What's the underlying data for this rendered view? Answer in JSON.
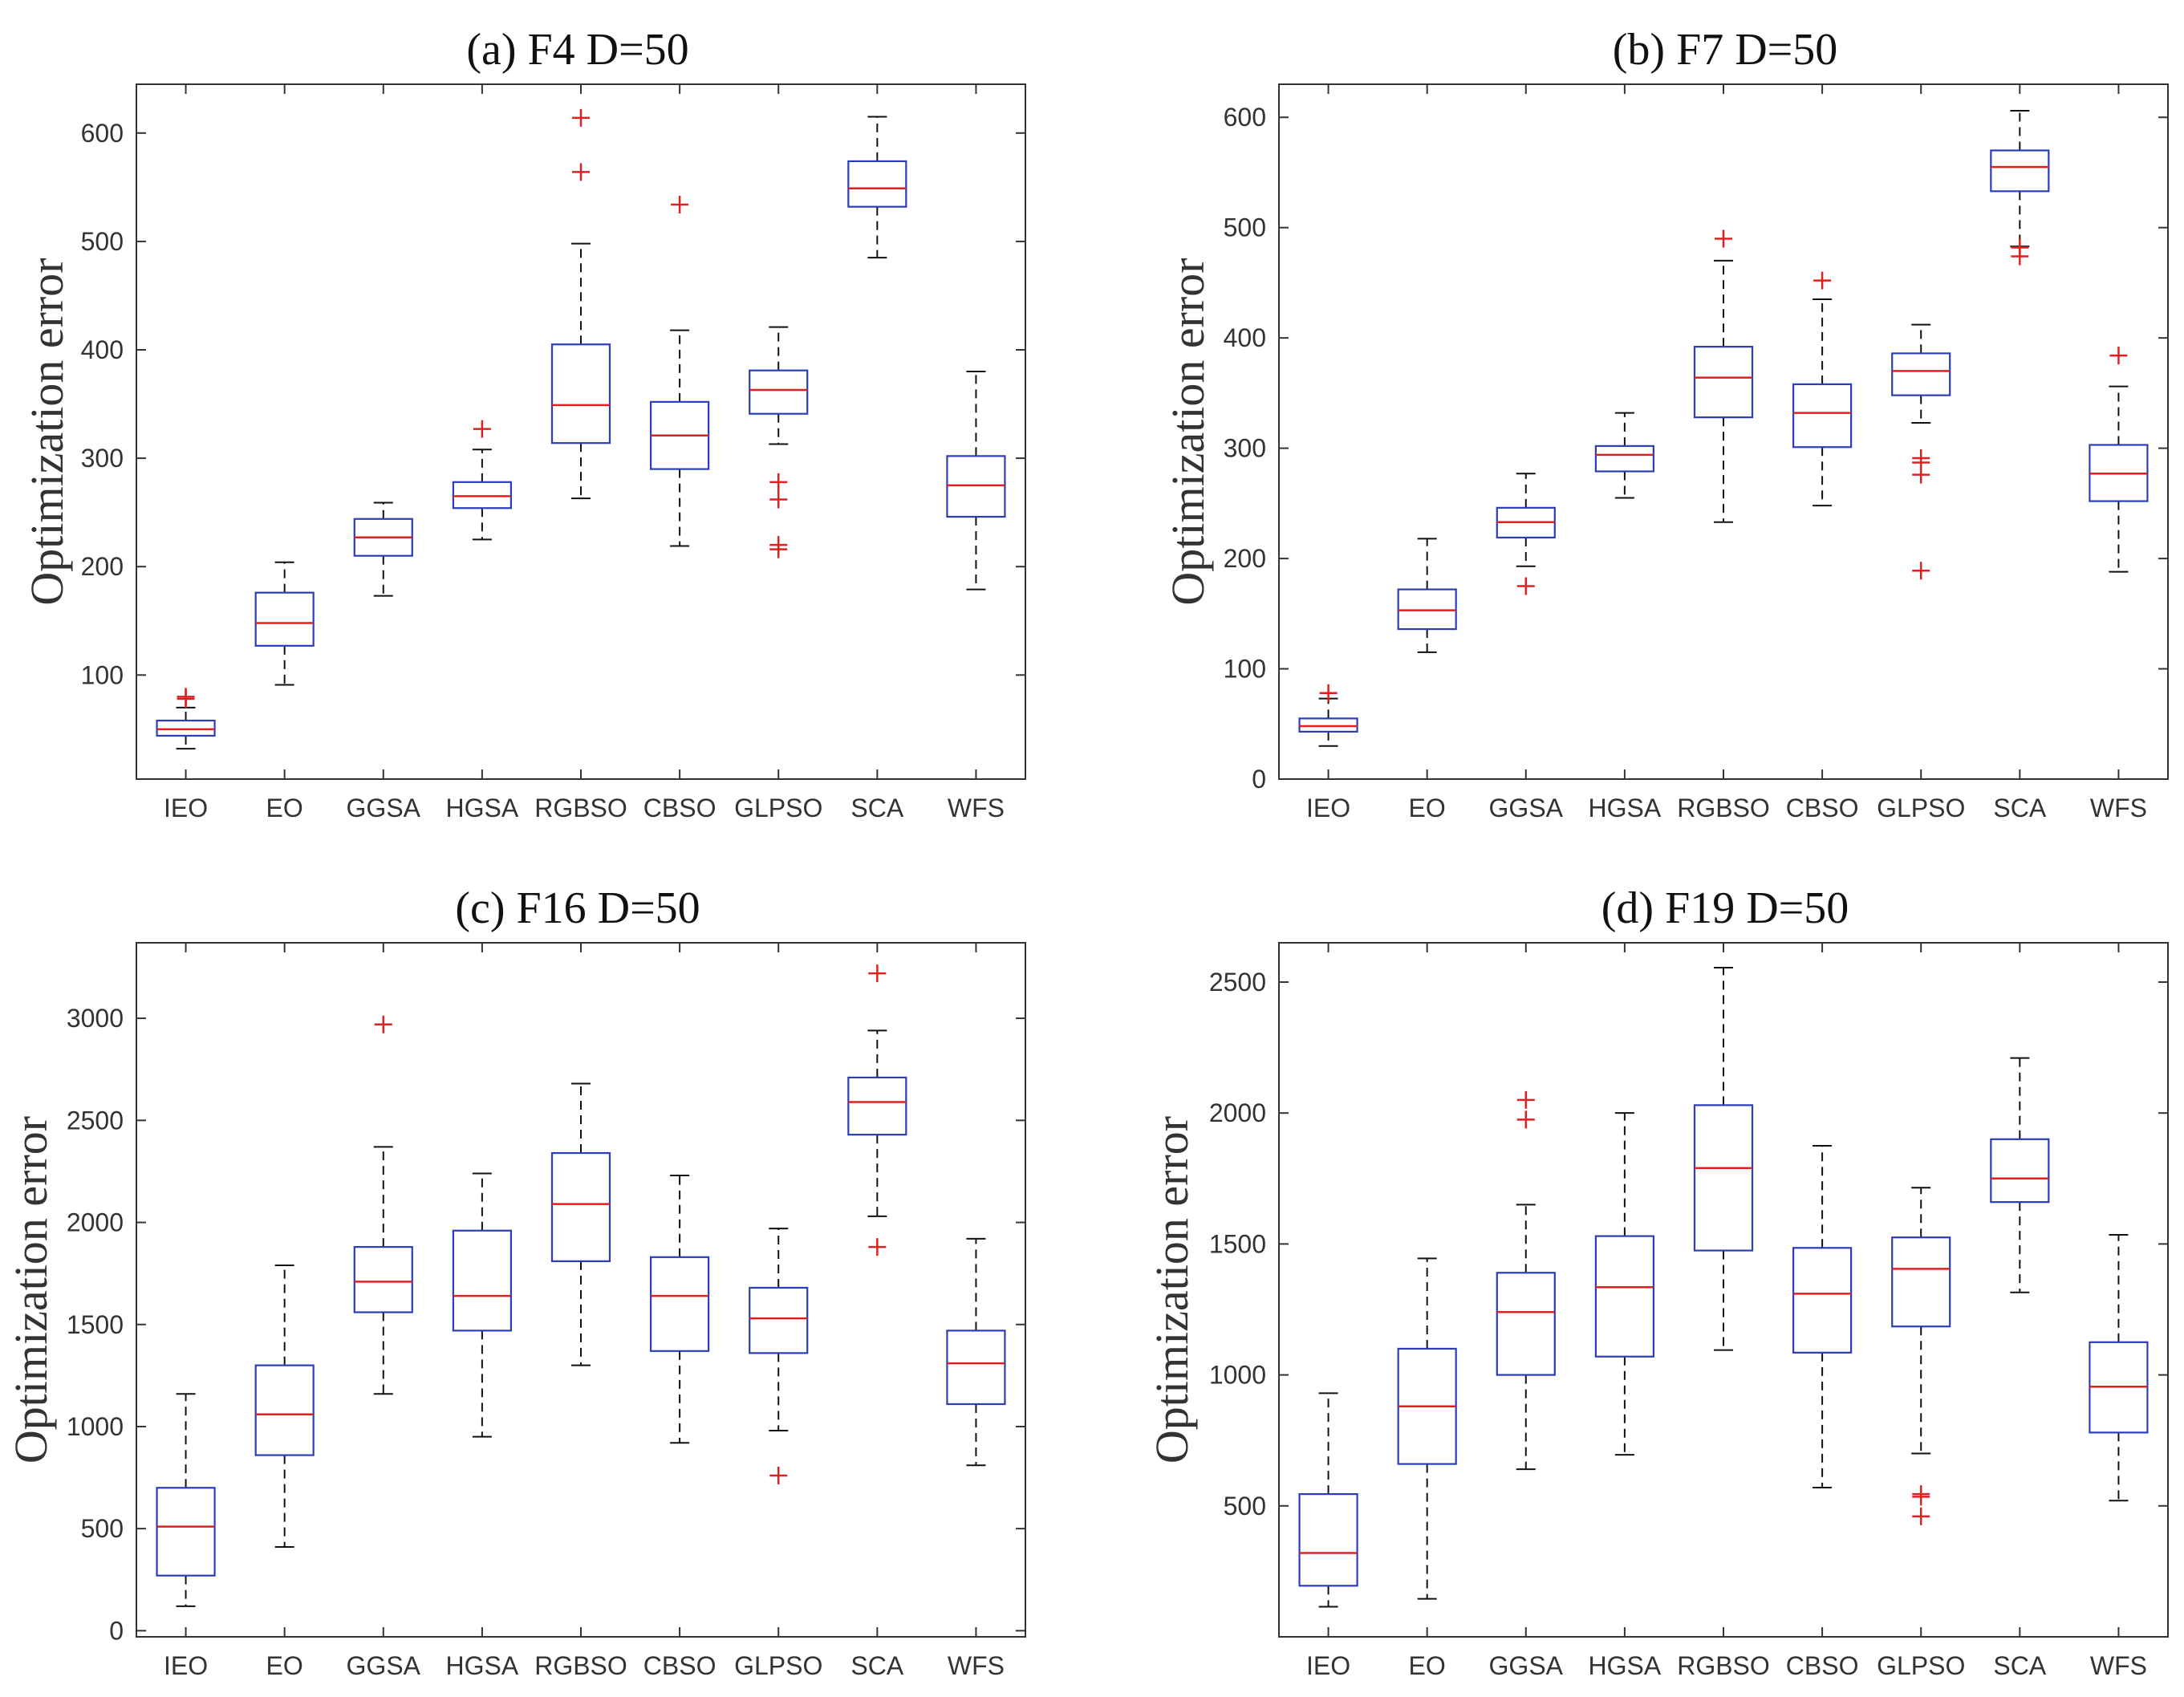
{
  "colors": {
    "box": "#2B3DB8",
    "median": "#E02020",
    "outlier": "#E02020",
    "whisker": "#111111",
    "axis": "#333333"
  },
  "chart_data": [
    {
      "type": "box",
      "title": "(a)  F4 D=50",
      "ylabel": "Optimization error",
      "xlabel": "",
      "ylim": [
        4,
        645
      ],
      "yticks": [
        100,
        200,
        300,
        400,
        500,
        600
      ],
      "categories": [
        "IEO",
        "EO",
        "GGSA",
        "HGSA",
        "RGBSO",
        "CBSO",
        "GLPSO",
        "SCA",
        "WFS"
      ],
      "boxes": [
        {
          "min": 32,
          "q1": 44,
          "median": 50,
          "q3": 58,
          "max": 70,
          "outliers": [
            78,
            80
          ]
        },
        {
          "min": 91,
          "q1": 127,
          "median": 148,
          "q3": 176,
          "max": 204,
          "outliers": []
        },
        {
          "min": 173,
          "q1": 210,
          "median": 227,
          "q3": 244,
          "max": 259,
          "outliers": []
        },
        {
          "min": 225,
          "q1": 254,
          "median": 265,
          "q3": 278,
          "max": 308,
          "outliers": [
            327
          ]
        },
        {
          "min": 263,
          "q1": 314,
          "median": 349,
          "q3": 405,
          "max": 498,
          "outliers": [
            564,
            614
          ]
        },
        {
          "min": 219,
          "q1": 290,
          "median": 321,
          "q3": 352,
          "max": 418,
          "outliers": [
            534
          ]
        },
        {
          "min": 313,
          "q1": 341,
          "median": 363,
          "q3": 381,
          "max": 421,
          "outliers": [
            278,
            262,
            220,
            216
          ]
        },
        {
          "min": 485,
          "q1": 532,
          "median": 549,
          "q3": 574,
          "max": 615,
          "outliers": []
        },
        {
          "min": 179,
          "q1": 246,
          "median": 275,
          "q3": 302,
          "max": 380,
          "outliers": []
        }
      ]
    },
    {
      "type": "box",
      "title": "(b)  F7 D=50",
      "ylabel": "Optimization error",
      "xlabel": "",
      "ylim": [
        0,
        630
      ],
      "yticks": [
        0,
        100,
        200,
        300,
        400,
        500,
        600
      ],
      "categories": [
        "IEO",
        "EO",
        "GGSA",
        "HGSA",
        "RGBSO",
        "CBSO",
        "GLPSO",
        "SCA",
        "WFS"
      ],
      "boxes": [
        {
          "min": 30,
          "q1": 43,
          "median": 48,
          "q3": 55,
          "max": 73,
          "outliers": [
            78
          ]
        },
        {
          "min": 115,
          "q1": 136,
          "median": 153,
          "q3": 172,
          "max": 218,
          "outliers": []
        },
        {
          "min": 193,
          "q1": 219,
          "median": 233,
          "q3": 246,
          "max": 277,
          "outliers": [
            175
          ]
        },
        {
          "min": 255,
          "q1": 279,
          "median": 294,
          "q3": 302,
          "max": 332,
          "outliers": []
        },
        {
          "min": 233,
          "q1": 328,
          "median": 364,
          "q3": 392,
          "max": 470,
          "outliers": [
            490
          ]
        },
        {
          "min": 248,
          "q1": 301,
          "median": 332,
          "q3": 358,
          "max": 435,
          "outliers": [
            452
          ]
        },
        {
          "min": 323,
          "q1": 348,
          "median": 370,
          "q3": 386,
          "max": 412,
          "outliers": [
            291,
            287,
            276,
            189
          ]
        },
        {
          "min": 483,
          "q1": 533,
          "median": 555,
          "q3": 570,
          "max": 606,
          "outliers": [
            482,
            474
          ]
        },
        {
          "min": 188,
          "q1": 252,
          "median": 277,
          "q3": 303,
          "max": 356,
          "outliers": [
            384
          ]
        }
      ]
    },
    {
      "type": "box",
      "title": "(c)  F16 D=50",
      "ylabel": "Optimization error",
      "xlabel": "",
      "ylim": [
        -30,
        3370
      ],
      "yticks": [
        0,
        500,
        1000,
        1500,
        2000,
        2500,
        3000
      ],
      "categories": [
        "IEO",
        "EO",
        "GGSA",
        "HGSA",
        "RGBSO",
        "CBSO",
        "GLPSO",
        "SCA",
        "WFS"
      ],
      "boxes": [
        {
          "min": 120,
          "q1": 270,
          "median": 510,
          "q3": 700,
          "max": 1160,
          "outliers": []
        },
        {
          "min": 410,
          "q1": 860,
          "median": 1060,
          "q3": 1300,
          "max": 1790,
          "outliers": []
        },
        {
          "min": 1160,
          "q1": 1560,
          "median": 1710,
          "q3": 1880,
          "max": 2370,
          "outliers": [
            2970
          ]
        },
        {
          "min": 950,
          "q1": 1470,
          "median": 1640,
          "q3": 1960,
          "max": 2240,
          "outliers": []
        },
        {
          "min": 1300,
          "q1": 1810,
          "median": 2090,
          "q3": 2340,
          "max": 2680,
          "outliers": []
        },
        {
          "min": 920,
          "q1": 1370,
          "median": 1640,
          "q3": 1830,
          "max": 2230,
          "outliers": []
        },
        {
          "min": 980,
          "q1": 1360,
          "median": 1530,
          "q3": 1680,
          "max": 1970,
          "outliers": [
            760
          ]
        },
        {
          "min": 2030,
          "q1": 2430,
          "median": 2590,
          "q3": 2710,
          "max": 2940,
          "outliers": [
            3220,
            1880
          ]
        },
        {
          "min": 810,
          "q1": 1110,
          "median": 1310,
          "q3": 1470,
          "max": 1920,
          "outliers": []
        }
      ]
    },
    {
      "type": "box",
      "title": "(d)  F19 D=50",
      "ylabel": "Optimization error",
      "xlabel": "",
      "ylim": [
        0,
        2650
      ],
      "yticks": [
        500,
        1000,
        1500,
        2000,
        2500
      ],
      "categories": [
        "IEO",
        "EO",
        "GGSA",
        "HGSA",
        "RGBSO",
        "CBSO",
        "GLPSO",
        "SCA",
        "WFS"
      ],
      "boxes": [
        {
          "min": 115,
          "q1": 195,
          "median": 320,
          "q3": 545,
          "max": 930,
          "outliers": []
        },
        {
          "min": 145,
          "q1": 660,
          "median": 880,
          "q3": 1100,
          "max": 1445,
          "outliers": []
        },
        {
          "min": 640,
          "q1": 1000,
          "median": 1240,
          "q3": 1390,
          "max": 1650,
          "outliers": [
            2050,
            1975
          ]
        },
        {
          "min": 695,
          "q1": 1070,
          "median": 1335,
          "q3": 1530,
          "max": 2000,
          "outliers": []
        },
        {
          "min": 1095,
          "q1": 1475,
          "median": 1790,
          "q3": 2030,
          "max": 2555,
          "outliers": []
        },
        {
          "min": 570,
          "q1": 1085,
          "median": 1310,
          "q3": 1485,
          "max": 1875,
          "outliers": []
        },
        {
          "min": 700,
          "q1": 1185,
          "median": 1405,
          "q3": 1525,
          "max": 1715,
          "outliers": [
            545,
            535,
            460
          ]
        },
        {
          "min": 1315,
          "q1": 1660,
          "median": 1750,
          "q3": 1900,
          "max": 2210,
          "outliers": []
        },
        {
          "min": 520,
          "q1": 780,
          "median": 955,
          "q3": 1125,
          "max": 1535,
          "outliers": []
        }
      ]
    }
  ]
}
